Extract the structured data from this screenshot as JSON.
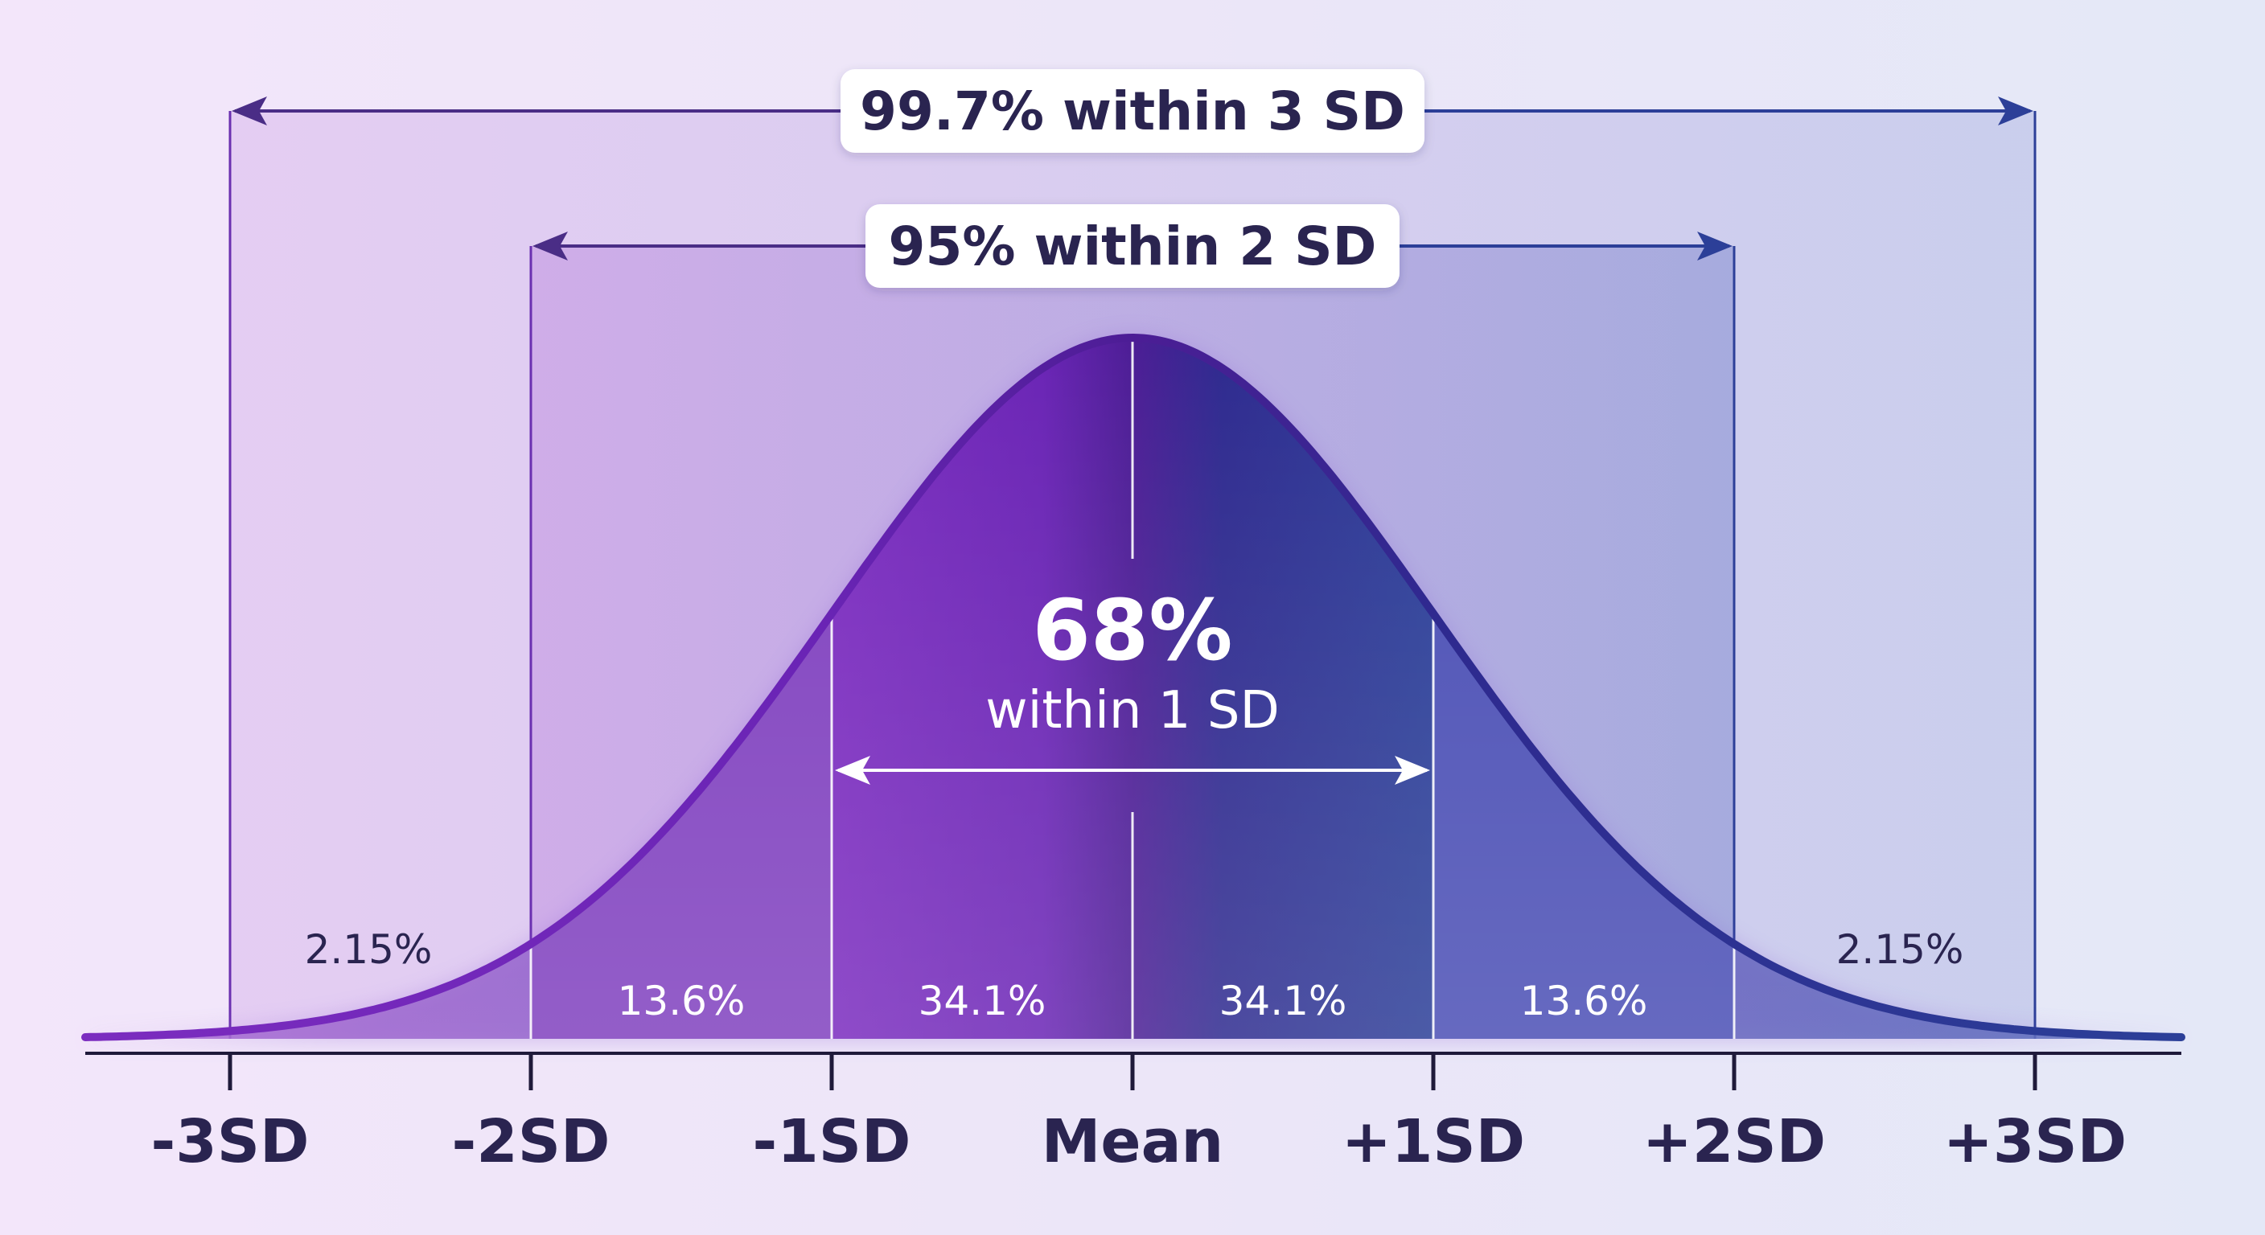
{
  "chart_data": {
    "type": "area",
    "title": "",
    "xlabel": "",
    "ylabel": "",
    "distribution": "normal",
    "xlim": [
      -3.6,
      3.6
    ],
    "x": [
      -3,
      -2,
      -1,
      0,
      1,
      2,
      3
    ],
    "tick_labels": [
      "-3SD",
      "-2SD",
      "-1SD",
      "Mean",
      "+1SD",
      "+2SD",
      "+3SD"
    ],
    "segments": [
      {
        "from": -3,
        "to": -2,
        "label": "2.15%",
        "value": 2.15
      },
      {
        "from": -2,
        "to": -1,
        "label": "13.6%",
        "value": 13.6
      },
      {
        "from": -1,
        "to": 0,
        "label": "34.1%",
        "value": 34.1
      },
      {
        "from": 0,
        "to": 1,
        "label": "34.1%",
        "value": 34.1
      },
      {
        "from": 1,
        "to": 2,
        "label": "13.6%",
        "value": 13.6
      },
      {
        "from": 2,
        "to": 3,
        "label": "2.15%",
        "value": 2.15
      }
    ],
    "ranges": [
      {
        "from": -3,
        "to": 3,
        "label": "99.7% within 3 SD"
      },
      {
        "from": -2,
        "to": 2,
        "label": "95% within 2 SD"
      }
    ],
    "center_annotation": {
      "value": "68%",
      "text": "within 1 SD",
      "from": -1,
      "to": 1
    },
    "grid": false,
    "legend": "none"
  },
  "colors": {
    "left": "#7b2cbf",
    "middle": "#4c1d95",
    "right": "#1e3a8a",
    "text": "#2a2450",
    "axis": "#1f1a3a"
  }
}
